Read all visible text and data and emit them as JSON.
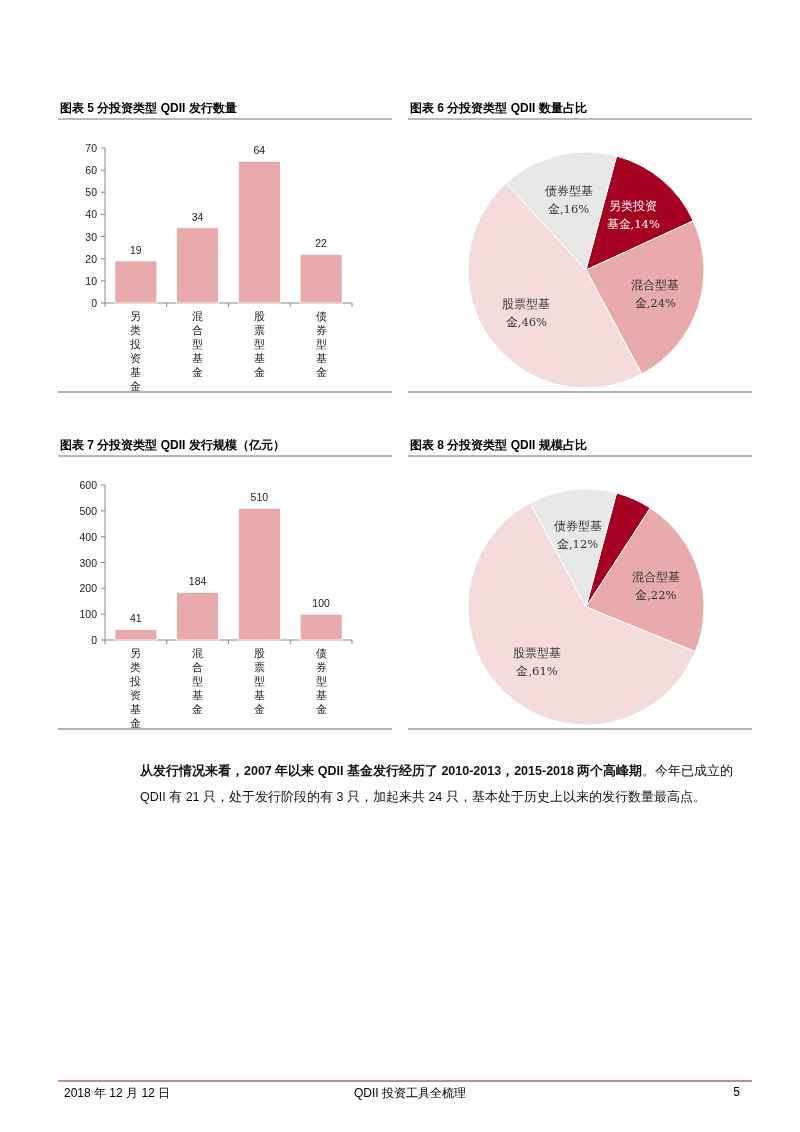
{
  "chart_data": [
    {
      "type": "bar",
      "title": "图表 5 分投资类型 QDII 发行数量",
      "categories": [
        "另类投资基金",
        "混合型基金",
        "股票型基金",
        "债券型基金"
      ],
      "values": [
        19,
        34,
        64,
        22
      ],
      "color": "#e8aaaa",
      "ylim": [
        0,
        70
      ],
      "yticks": [
        0,
        10,
        20,
        30,
        40,
        50,
        60,
        70
      ],
      "data_labels": true
    },
    {
      "type": "pie",
      "title": "图表 6 分投资类型 QDII 数量占比",
      "categories": [
        "另类投资基金",
        "混合型基金",
        "股票型基金",
        "债券型基金"
      ],
      "values": [
        14,
        24,
        46,
        16
      ],
      "colors": [
        "#a50021",
        "#e8aaaa",
        "#f5dcdc",
        "#e8e8e8"
      ],
      "value_labels": [
        "14%",
        "24%",
        "46%",
        "16%"
      ]
    },
    {
      "type": "bar",
      "title": "图表 7 分投资类型 QDII 发行规模（亿元）",
      "categories": [
        "另类投资基金",
        "混合型基金",
        "股票型基金",
        "债券型基金"
      ],
      "values": [
        41,
        184,
        510,
        100
      ],
      "color": "#e8aaaa",
      "ylim": [
        0,
        600
      ],
      "yticks": [
        0,
        100,
        200,
        300,
        400,
        500,
        600
      ],
      "data_labels": true
    },
    {
      "type": "pie",
      "title": "图表 8 分投资类型 QDII 规模占比",
      "categories": [
        null,
        "混合型基金",
        "股票型基金",
        "债券型基金"
      ],
      "values": [
        5,
        22,
        61,
        12
      ],
      "colors": [
        "#a50021",
        "#e8aaaa",
        "#f5dcdc",
        "#e8e8e8"
      ],
      "value_labels": [
        null,
        "22%",
        "61%",
        "12%"
      ]
    },
    {
      "type": "other",
      "annotations": [
        "**从发行情况来看，2007 年以来 QDII 基金发行经历了 2010-2013，2015-2018 两个高峰期**。今年已成立的 QDII 有 21 只，处于发行阶段的有 3 只，加起来共 24 只，基本处于历史上以来的发行数量最高点。",
        "2018 年 12 月 12 日",
        "QDII 投资工具全梳理",
        "5"
      ]
    }
  ]
}
